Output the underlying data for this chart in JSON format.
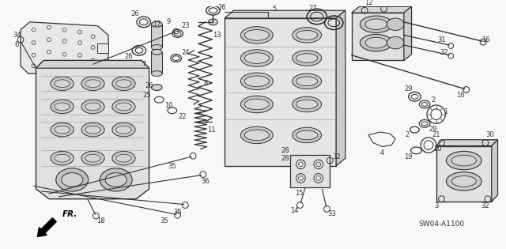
{
  "bg_color": "#f8f8f8",
  "dc": "#333333",
  "diagram_id": "SW04-A1100",
  "font_size_label": 6.0,
  "font_size_id": 6.5
}
